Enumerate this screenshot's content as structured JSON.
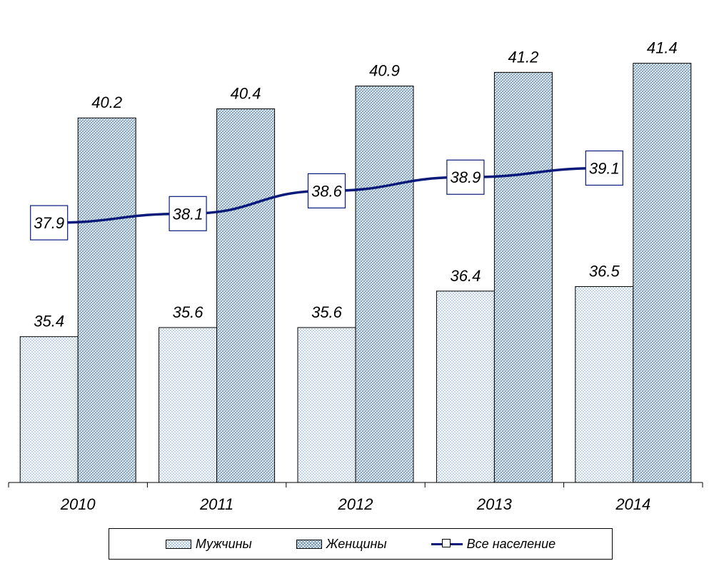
{
  "chart_data": {
    "type": "bar",
    "categories": [
      "2010",
      "2011",
      "2012",
      "2013",
      "2014"
    ],
    "series": [
      {
        "name": "Мужчины",
        "kind": "bar",
        "values": [
          35.4,
          35.6,
          35.6,
          36.4,
          36.5
        ]
      },
      {
        "name": "Женщины",
        "kind": "bar",
        "values": [
          40.2,
          40.4,
          40.9,
          41.2,
          41.4
        ]
      },
      {
        "name": "Все население",
        "kind": "line",
        "values": [
          37.9,
          38.1,
          38.6,
          38.9,
          39.1
        ]
      }
    ],
    "ylim": [
      32.2,
      42.6
    ],
    "grid": false,
    "legend_position": "bottom",
    "data_labels": true
  },
  "legend": [
    {
      "key": "men",
      "label": "Мужчины"
    },
    {
      "key": "women",
      "label": "Женщины"
    },
    {
      "key": "all",
      "label": "Все население"
    }
  ],
  "colors": {
    "men_pattern": "#8fb6d3",
    "women_pattern": "#6f95b4",
    "line": "#0a1a7a",
    "border": "#000000"
  }
}
